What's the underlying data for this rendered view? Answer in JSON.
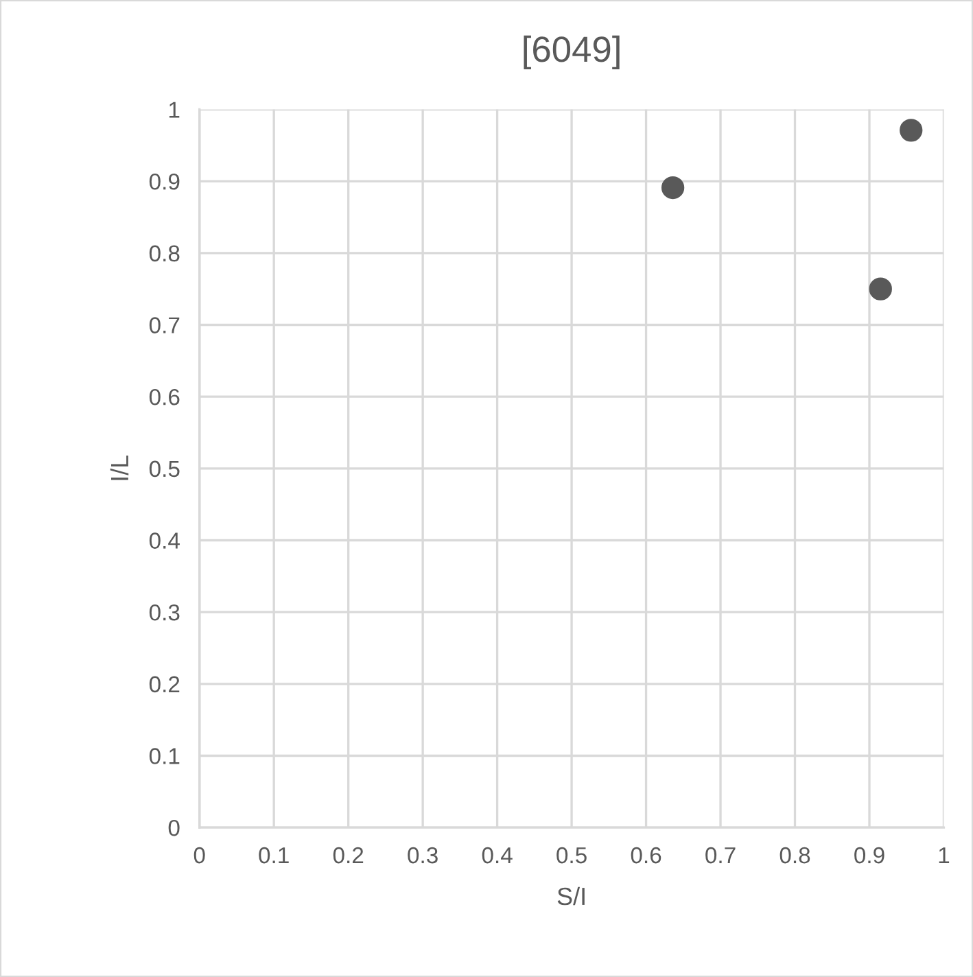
{
  "chart_data": {
    "type": "scatter",
    "title": "[6049]",
    "xlabel": "S/I",
    "ylabel": "I/L",
    "x": [
      0.636,
      0.915,
      0.956
    ],
    "series": [
      {
        "color": "#595959",
        "values": [
          0.891,
          0.75,
          0.971
        ]
      }
    ],
    "xlim": [
      0,
      1
    ],
    "xticks": [
      0,
      0.1,
      0.2,
      0.3,
      0.4,
      0.5,
      0.6,
      0.7,
      0.8,
      0.9,
      1
    ],
    "ylim": [
      0,
      1
    ],
    "yticks": [
      0,
      0.1,
      0.2,
      0.3,
      0.4,
      0.5,
      0.6,
      0.7,
      0.8,
      0.9,
      1
    ],
    "grid": true,
    "marker": "circle",
    "legend": false
  }
}
